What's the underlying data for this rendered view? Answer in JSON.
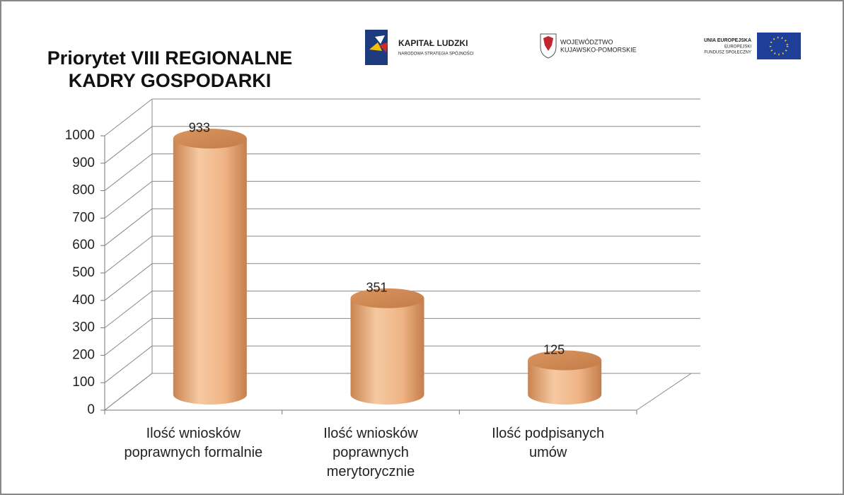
{
  "logos": {
    "kapital": "KAPITAŁ LUDZKI",
    "kapital_sub": "NARODOWA STRATEGIA SPÓJNOŚCI",
    "woj_1": "WOJEWÓDZTWO",
    "woj_2": "KUJAWSKO-POMORSKIE",
    "ue_1": "UNIA EUROPEJSKA",
    "ue_2": "EUROPEJSKI",
    "ue_3": "FUNDUSZ SPOŁECZNY"
  },
  "chart_data": {
    "type": "bar3d",
    "title": "Priorytet VIII REGIONALNE KADRY GOSPODARKI",
    "categories": [
      "Ilość wniosków poprawnych formalnie",
      "Ilość wniosków poprawnych merytorycznie",
      "Ilość podpisanych umów"
    ],
    "values": [
      933,
      351,
      125
    ],
    "color": "#e8a878",
    "ylim": [
      0,
      1000
    ],
    "yticks": [
      0,
      100,
      200,
      300,
      400,
      500,
      600,
      700,
      800,
      900,
      1000
    ],
    "grid": true
  }
}
